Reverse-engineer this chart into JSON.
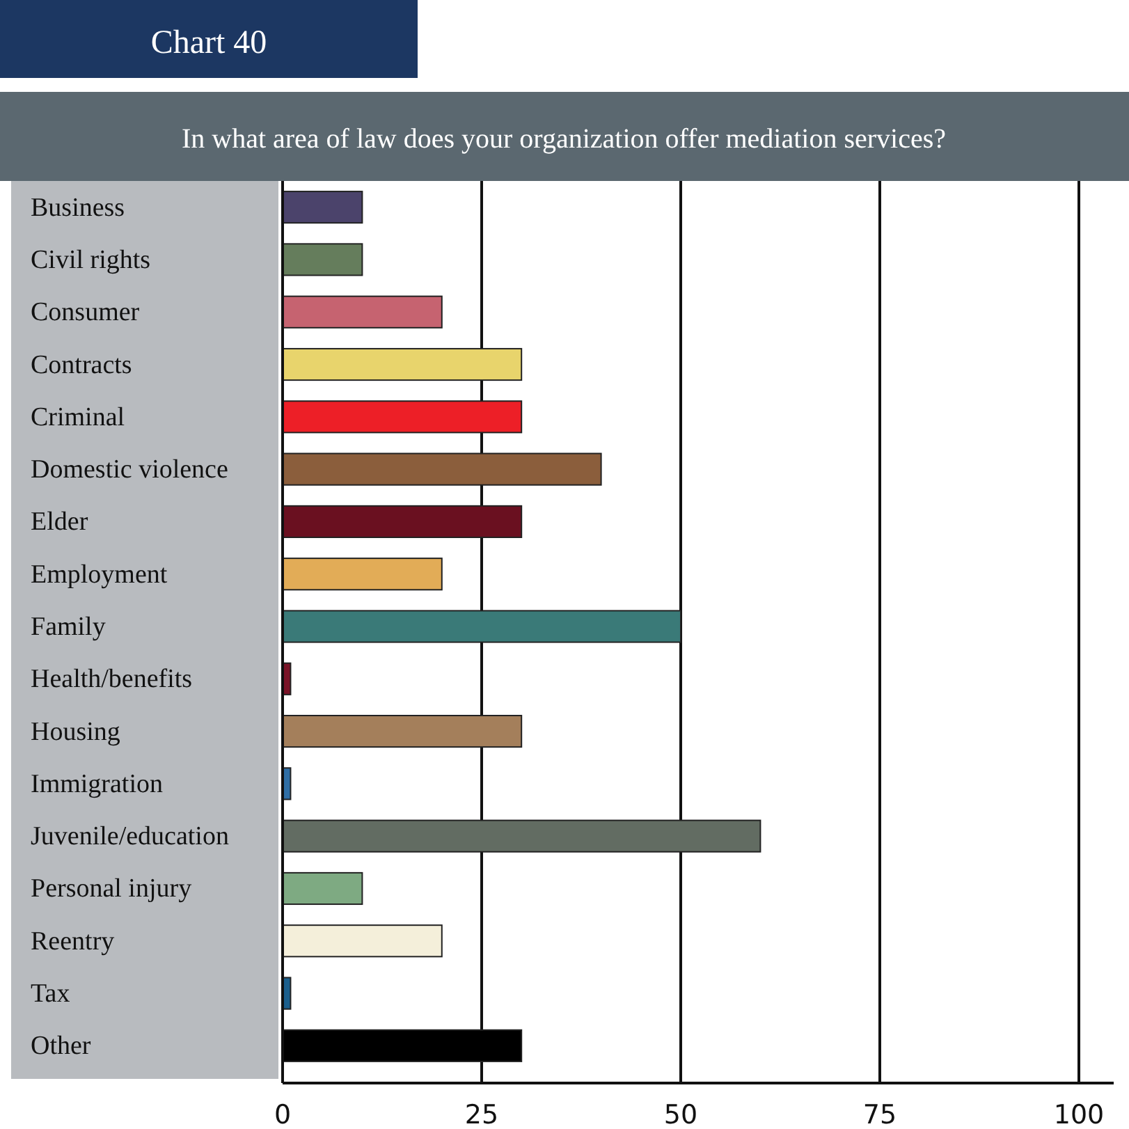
{
  "chart_data": {
    "type": "bar",
    "orientation": "horizontal",
    "title": "Chart 40",
    "subtitle": "In what area of law does your organization offer mediation services?",
    "categories": [
      "Business",
      "Civil rights",
      "Consumer",
      "Contracts",
      "Criminal",
      "Domestic violence",
      "Elder",
      "Employment",
      "Family",
      "Health/benefits",
      "Housing",
      "Immigration",
      "Juvenile/education",
      "Personal injury",
      "Reentry",
      "Tax",
      "Other"
    ],
    "values": [
      10,
      10,
      20,
      30,
      30,
      40,
      30,
      20,
      50,
      1,
      30,
      1,
      60,
      10,
      20,
      1,
      30
    ],
    "colors": [
      "#4b436b",
      "#657d5c",
      "#c66370",
      "#e8d46c",
      "#ed1f27",
      "#8b5e3c",
      "#6a1020",
      "#e2ac57",
      "#3a7a78",
      "#7a1428",
      "#a47f5b",
      "#2f6ea5",
      "#626c62",
      "#7eaa82",
      "#f4efda",
      "#1b5f8c",
      "#000000"
    ],
    "xlim": [
      0,
      100
    ],
    "xticks": [
      0,
      25,
      50,
      75,
      100
    ],
    "grid": "x"
  }
}
